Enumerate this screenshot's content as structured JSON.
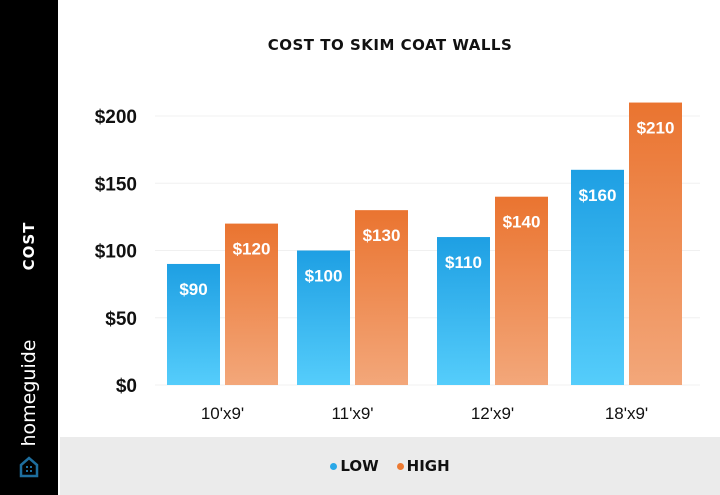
{
  "brand": "homeguide",
  "colors": {
    "low": "#29a8e8",
    "high": "#ec7a32",
    "sidebar": "#000000",
    "legend_bg": "#ebebeb"
  },
  "chart_data": {
    "type": "bar",
    "title": "COST TO SKIM COAT WALLS",
    "xlabel": "",
    "ylabel": "COST",
    "ylim": [
      0,
      210
    ],
    "yticks": [
      "$0",
      "$50",
      "$100",
      "$150",
      "$200"
    ],
    "ytick_values": [
      0,
      50,
      100,
      150,
      200
    ],
    "grid": true,
    "legend_position": "bottom",
    "categories": [
      "10'x9'",
      "11'x9'",
      "12'x9'",
      "18'x9'"
    ],
    "series": [
      {
        "name": "LOW",
        "values": [
          90,
          100,
          110,
          160
        ],
        "labels": [
          "$90",
          "$100",
          "$110",
          "$160"
        ]
      },
      {
        "name": "HIGH",
        "values": [
          120,
          130,
          140,
          210
        ],
        "labels": [
          "$120",
          "$130",
          "$140",
          "$210"
        ]
      }
    ]
  }
}
